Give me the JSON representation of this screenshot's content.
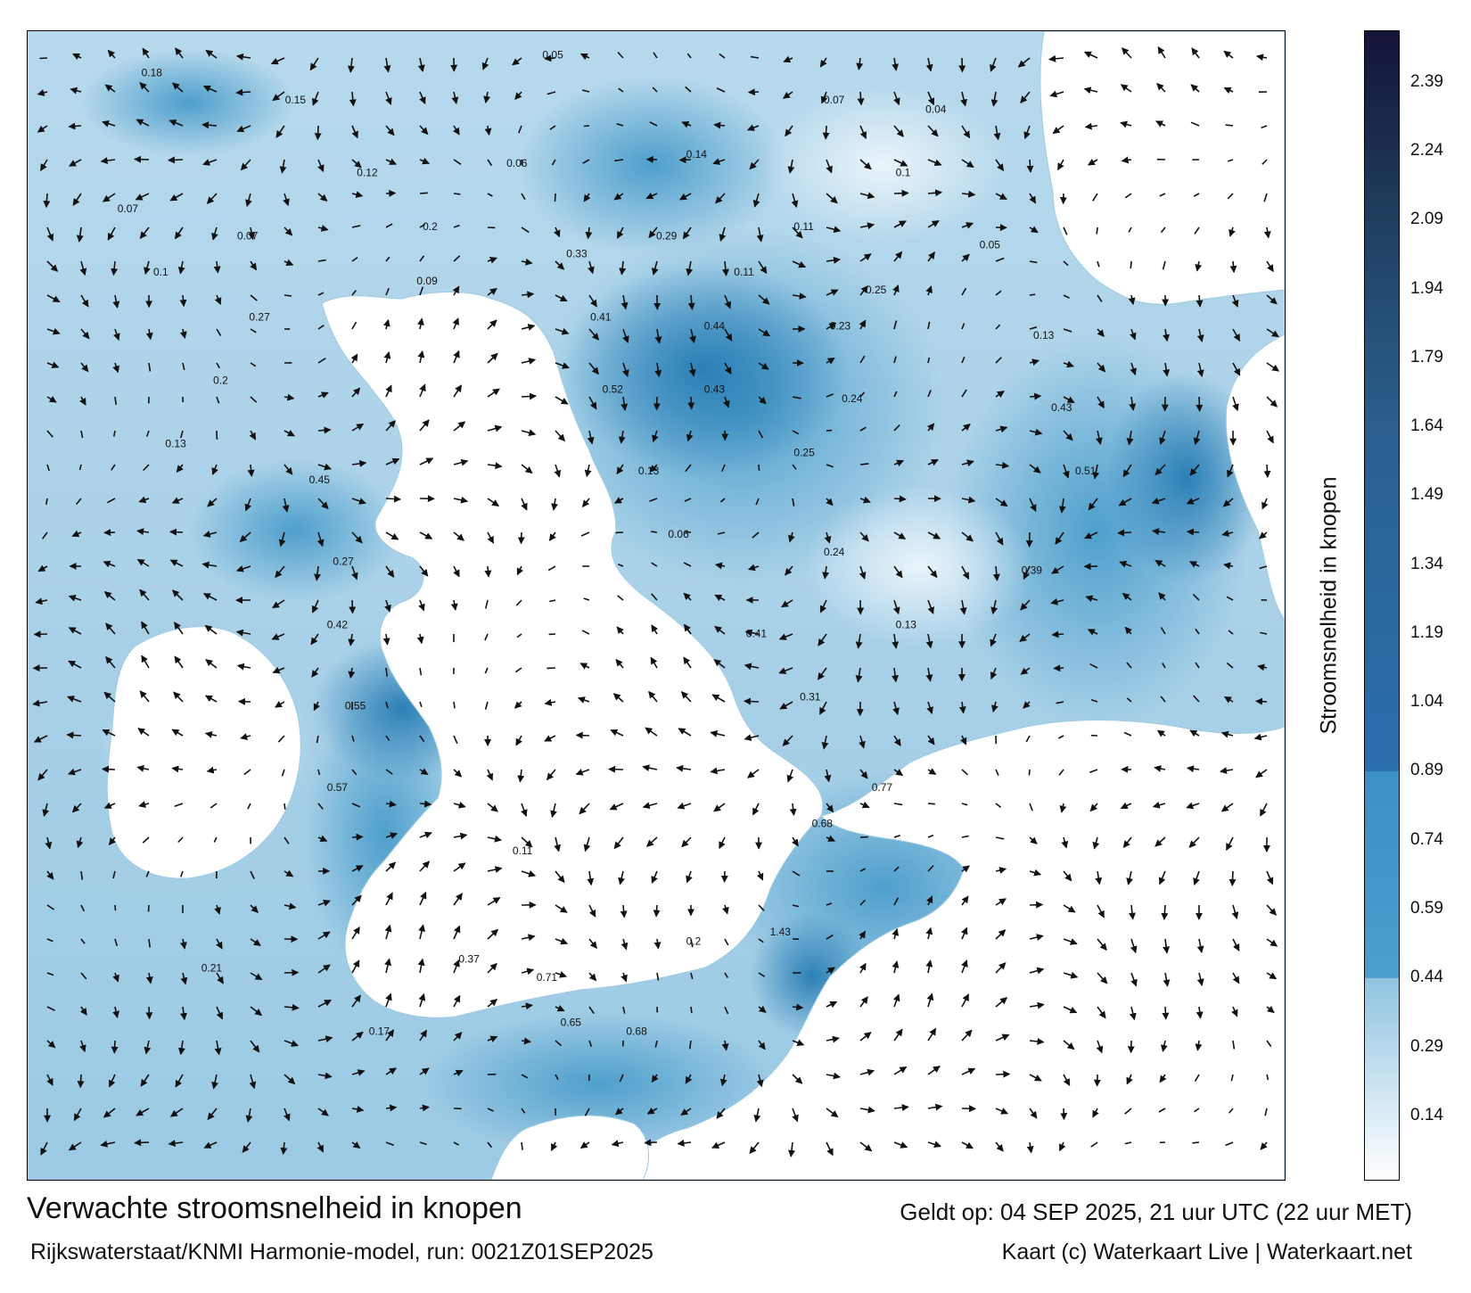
{
  "map": {
    "title": "Verwachte stroomsnelheid in knopen",
    "subtitle": "Rijkswaterstaat/KNMI Harmonie-model, run: 0021Z01SEP2025",
    "valid_time": "Geldt op: 04 SEP 2025, 21 uur UTC (22 uur MET)",
    "credit": "Kaart (c) Waterkaart Live | Waterkaart.net",
    "land_color": "#ffffff",
    "current_labels": [
      {
        "lon": -8.6,
        "lat": 60.7,
        "v": "0.18"
      },
      {
        "lon": -6.2,
        "lat": 60.4,
        "v": "0.15"
      },
      {
        "lon": -1.9,
        "lat": 60.9,
        "v": "0.05"
      },
      {
        "lon": 2.8,
        "lat": 60.4,
        "v": "0.07"
      },
      {
        "lon": 4.5,
        "lat": 60.3,
        "v": "0.04"
      },
      {
        "lon": -5.0,
        "lat": 59.6,
        "v": "0.12"
      },
      {
        "lon": -2.5,
        "lat": 59.7,
        "v": "0.06"
      },
      {
        "lon": 0.5,
        "lat": 59.8,
        "v": "0.14"
      },
      {
        "lon": 4.0,
        "lat": 59.6,
        "v": "0.1"
      },
      {
        "lon": -9.0,
        "lat": 59.2,
        "v": "0.07"
      },
      {
        "lon": -7.0,
        "lat": 58.9,
        "v": "0.07"
      },
      {
        "lon": -3.9,
        "lat": 59.0,
        "v": "0.2"
      },
      {
        "lon": 0.0,
        "lat": 58.9,
        "v": "0.29"
      },
      {
        "lon": 2.3,
        "lat": 59.0,
        "v": "0.11"
      },
      {
        "lon": 5.4,
        "lat": 58.8,
        "v": "0.05"
      },
      {
        "lon": -8.4,
        "lat": 58.5,
        "v": "0.1"
      },
      {
        "lon": -4.0,
        "lat": 58.4,
        "v": "0.09"
      },
      {
        "lon": -1.5,
        "lat": 58.7,
        "v": "0.33"
      },
      {
        "lon": 1.3,
        "lat": 58.5,
        "v": "0.11"
      },
      {
        "lon": 3.5,
        "lat": 58.3,
        "v": "0.25"
      },
      {
        "lon": -6.8,
        "lat": 58.0,
        "v": "0.27"
      },
      {
        "lon": -1.1,
        "lat": 58.0,
        "v": "0.41"
      },
      {
        "lon": 0.8,
        "lat": 57.9,
        "v": "0.44"
      },
      {
        "lon": 2.9,
        "lat": 57.9,
        "v": "0.23"
      },
      {
        "lon": 6.3,
        "lat": 57.8,
        "v": "0.13"
      },
      {
        "lon": -7.4,
        "lat": 57.3,
        "v": "0.2"
      },
      {
        "lon": -0.9,
        "lat": 57.2,
        "v": "0.52"
      },
      {
        "lon": 0.8,
        "lat": 57.2,
        "v": "0.43"
      },
      {
        "lon": 3.1,
        "lat": 57.1,
        "v": "0.24"
      },
      {
        "lon": 6.6,
        "lat": 57.0,
        "v": "0.43"
      },
      {
        "lon": -8.2,
        "lat": 56.6,
        "v": "0.13"
      },
      {
        "lon": -5.8,
        "lat": 56.2,
        "v": "0.45"
      },
      {
        "lon": -0.3,
        "lat": 56.3,
        "v": "0.13"
      },
      {
        "lon": 2.3,
        "lat": 56.5,
        "v": "0.25"
      },
      {
        "lon": 7.0,
        "lat": 56.3,
        "v": "0.51"
      },
      {
        "lon": -5.4,
        "lat": 55.3,
        "v": "0.27"
      },
      {
        "lon": 0.2,
        "lat": 55.6,
        "v": "0.06"
      },
      {
        "lon": 2.8,
        "lat": 55.4,
        "v": "0.24"
      },
      {
        "lon": 6.1,
        "lat": 55.2,
        "v": "0.39"
      },
      {
        "lon": -5.5,
        "lat": 54.6,
        "v": "0.42"
      },
      {
        "lon": 1.5,
        "lat": 54.5,
        "v": "0.41"
      },
      {
        "lon": 4.0,
        "lat": 54.6,
        "v": "0.13"
      },
      {
        "lon": -5.2,
        "lat": 53.7,
        "v": "0.55"
      },
      {
        "lon": 2.4,
        "lat": 53.8,
        "v": "0.31"
      },
      {
        "lon": -5.5,
        "lat": 52.8,
        "v": "0.57"
      },
      {
        "lon": 2.6,
        "lat": 52.4,
        "v": "0.68"
      },
      {
        "lon": 3.6,
        "lat": 52.8,
        "v": "0.77"
      },
      {
        "lon": -2.4,
        "lat": 52.1,
        "v": "0.11"
      },
      {
        "lon": 1.9,
        "lat": 51.2,
        "v": "1.43"
      },
      {
        "lon": 0.5,
        "lat": 51.1,
        "v": "0.2"
      },
      {
        "lon": -3.3,
        "lat": 50.9,
        "v": "0.37"
      },
      {
        "lon": -2.0,
        "lat": 50.7,
        "v": "0.71"
      },
      {
        "lon": -1.6,
        "lat": 50.2,
        "v": "0.65"
      },
      {
        "lon": -4.8,
        "lat": 50.1,
        "v": "0.17"
      },
      {
        "lon": -7.6,
        "lat": 50.8,
        "v": "0.21"
      },
      {
        "lon": -0.5,
        "lat": 50.1,
        "v": "0.68"
      }
    ]
  },
  "legend": {
    "label": "Stroomsnelheid in knopen",
    "ticks": [
      "2.39",
      "2.24",
      "2.09",
      "1.94",
      "1.79",
      "1.64",
      "1.49",
      "1.34",
      "1.19",
      "1.04",
      "0.89",
      "0.74",
      "0.59",
      "0.44",
      "0.29",
      "0.14"
    ],
    "tick_values": [
      2.39,
      2.24,
      2.09,
      1.94,
      1.79,
      1.64,
      1.49,
      1.34,
      1.19,
      1.04,
      0.89,
      0.74,
      0.59,
      0.44,
      0.29,
      0.14
    ],
    "min": 0.0,
    "max": 2.5,
    "colors": {
      "low": "#ffffff",
      "mid": "#3a8fc4",
      "high": "#15133a",
      "band_044": "#4a9fd0",
      "band_089": "#2a6fae",
      "band_164": "#2a5f8e",
      "band_209": "#1f3f5f"
    }
  }
}
